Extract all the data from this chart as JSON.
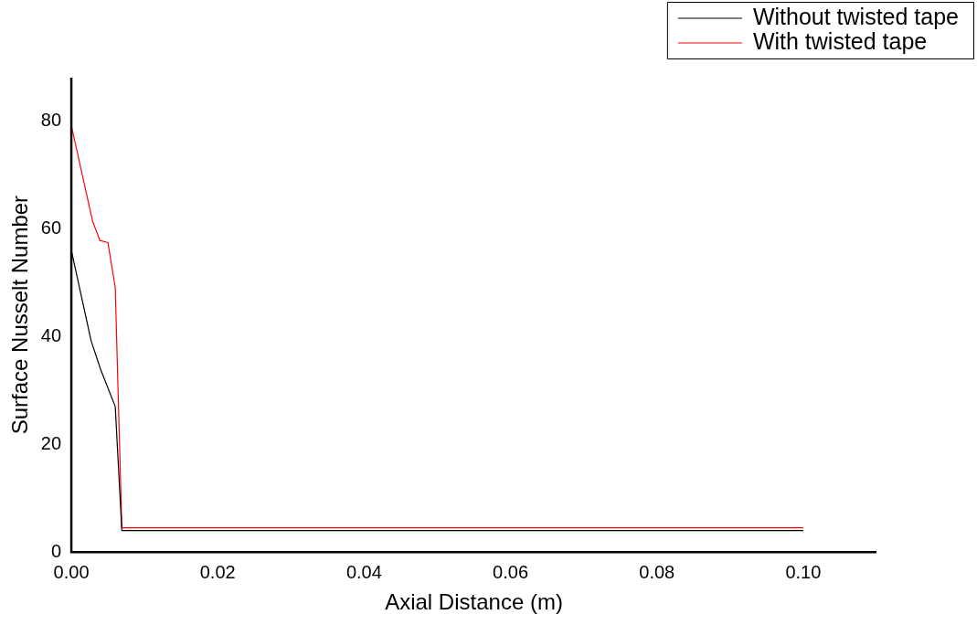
{
  "chart_data": {
    "type": "line",
    "xlabel": "Axial Distance (m)",
    "ylabel": "Surface Nusselt Number",
    "xlim": [
      0,
      0.11
    ],
    "ylim": [
      0,
      88
    ],
    "xticks": [
      {
        "value": 0,
        "label": "0.00"
      },
      {
        "value": 0.02,
        "label": "0.02"
      },
      {
        "value": 0.04,
        "label": "0.04"
      },
      {
        "value": 0.06,
        "label": "0.06"
      },
      {
        "value": 0.08,
        "label": "0.08"
      },
      {
        "value": 0.1,
        "label": "0.10"
      }
    ],
    "yticks": [
      0,
      20,
      40,
      60,
      80
    ],
    "grid": false,
    "legend": "top right",
    "marker": "none",
    "line_style": "solid",
    "series": [
      {
        "name": "Without twisted tape",
        "color": "#000000",
        "x": [
          0,
          0.0027,
          0.004,
          0.006,
          0.0069,
          0.1
        ],
        "values": [
          56,
          39.2,
          33.9,
          27,
          4,
          4
        ]
      },
      {
        "name": "With twisted tape",
        "color": "#ff0000",
        "x": [
          0,
          0.0029,
          0.0039,
          0.005,
          0.006,
          0.0069,
          0.1
        ],
        "values": [
          79.1,
          61.4,
          57.8,
          57.4,
          49.1,
          4.5,
          4.5
        ]
      }
    ]
  }
}
